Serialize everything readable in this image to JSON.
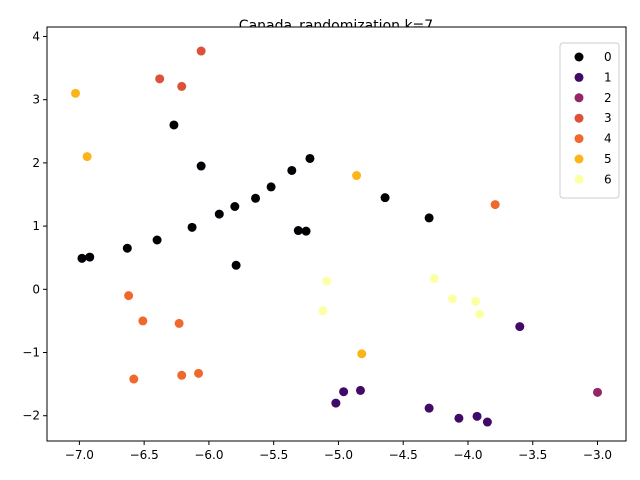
{
  "chart_data": {
    "type": "scatter",
    "title": "Canada_randomization k=7",
    "xlabel": "",
    "ylabel": "",
    "xlim": [
      -7.25,
      -2.78
    ],
    "ylim": [
      -2.4,
      4.15
    ],
    "xticks": [
      -7.0,
      -6.5,
      -6.0,
      -5.5,
      -5.0,
      -4.5,
      -4.0,
      -3.5,
      -3.0
    ],
    "xtick_labels": [
      "−7.0",
      "−6.5",
      "−6.0",
      "−5.5",
      "−5.0",
      "−4.5",
      "−4.0",
      "−3.5",
      "−3.0"
    ],
    "yticks": [
      -2,
      -1,
      0,
      1,
      2,
      3,
      4
    ],
    "ytick_labels": [
      "−2",
      "−1",
      "0",
      "1",
      "2",
      "3",
      "4"
    ],
    "grid": false,
    "legend_position": "top-right",
    "series": [
      {
        "name": "0",
        "color": "#000004",
        "points": [
          [
            -6.98,
            0.49
          ],
          [
            -6.92,
            0.51
          ],
          [
            -6.63,
            0.65
          ],
          [
            -6.4,
            0.78
          ],
          [
            -6.27,
            2.6
          ],
          [
            -6.13,
            0.98
          ],
          [
            -6.06,
            1.95
          ],
          [
            -5.92,
            1.19
          ],
          [
            -5.8,
            1.31
          ],
          [
            -5.79,
            0.38
          ],
          [
            -5.64,
            1.44
          ],
          [
            -5.52,
            1.62
          ],
          [
            -5.36,
            1.88
          ],
          [
            -5.31,
            0.93
          ],
          [
            -5.25,
            0.92
          ],
          [
            -5.22,
            2.07
          ],
          [
            -4.64,
            1.45
          ],
          [
            -4.3,
            1.13
          ]
        ]
      },
      {
        "name": "1",
        "color": "#420a68",
        "points": [
          [
            -5.02,
            -1.8
          ],
          [
            -4.96,
            -1.62
          ],
          [
            -4.83,
            -1.6
          ],
          [
            -4.3,
            -1.88
          ],
          [
            -4.07,
            -2.04
          ],
          [
            -3.93,
            -2.01
          ],
          [
            -3.85,
            -2.1
          ],
          [
            -3.6,
            -0.59
          ]
        ]
      },
      {
        "name": "2",
        "color": "#932667",
        "points": [
          [
            -3.0,
            -1.63
          ]
        ]
      },
      {
        "name": "3",
        "color": "#dd513a",
        "points": [
          [
            -6.38,
            3.33
          ],
          [
            -6.21,
            3.21
          ],
          [
            -6.06,
            3.77
          ]
        ]
      },
      {
        "name": "4",
        "color": "#f0692c",
        "points": [
          [
            -6.62,
            -0.1
          ],
          [
            -6.58,
            -1.42
          ],
          [
            -6.51,
            -0.5
          ],
          [
            -6.23,
            -0.54
          ],
          [
            -6.21,
            -1.36
          ],
          [
            -6.08,
            -1.33
          ],
          [
            -3.79,
            1.34
          ]
        ]
      },
      {
        "name": "5",
        "color": "#fcb519",
        "points": [
          [
            -7.03,
            3.1
          ],
          [
            -6.94,
            2.1
          ],
          [
            -4.86,
            1.8
          ],
          [
            -4.82,
            -1.02
          ]
        ]
      },
      {
        "name": "6",
        "color": "#fcffa4",
        "points": [
          [
            -5.09,
            0.13
          ],
          [
            -5.12,
            -0.34
          ],
          [
            -4.26,
            0.17
          ],
          [
            -4.12,
            -0.15
          ],
          [
            -3.94,
            -0.19
          ],
          [
            -3.91,
            -0.39
          ]
        ]
      }
    ]
  }
}
